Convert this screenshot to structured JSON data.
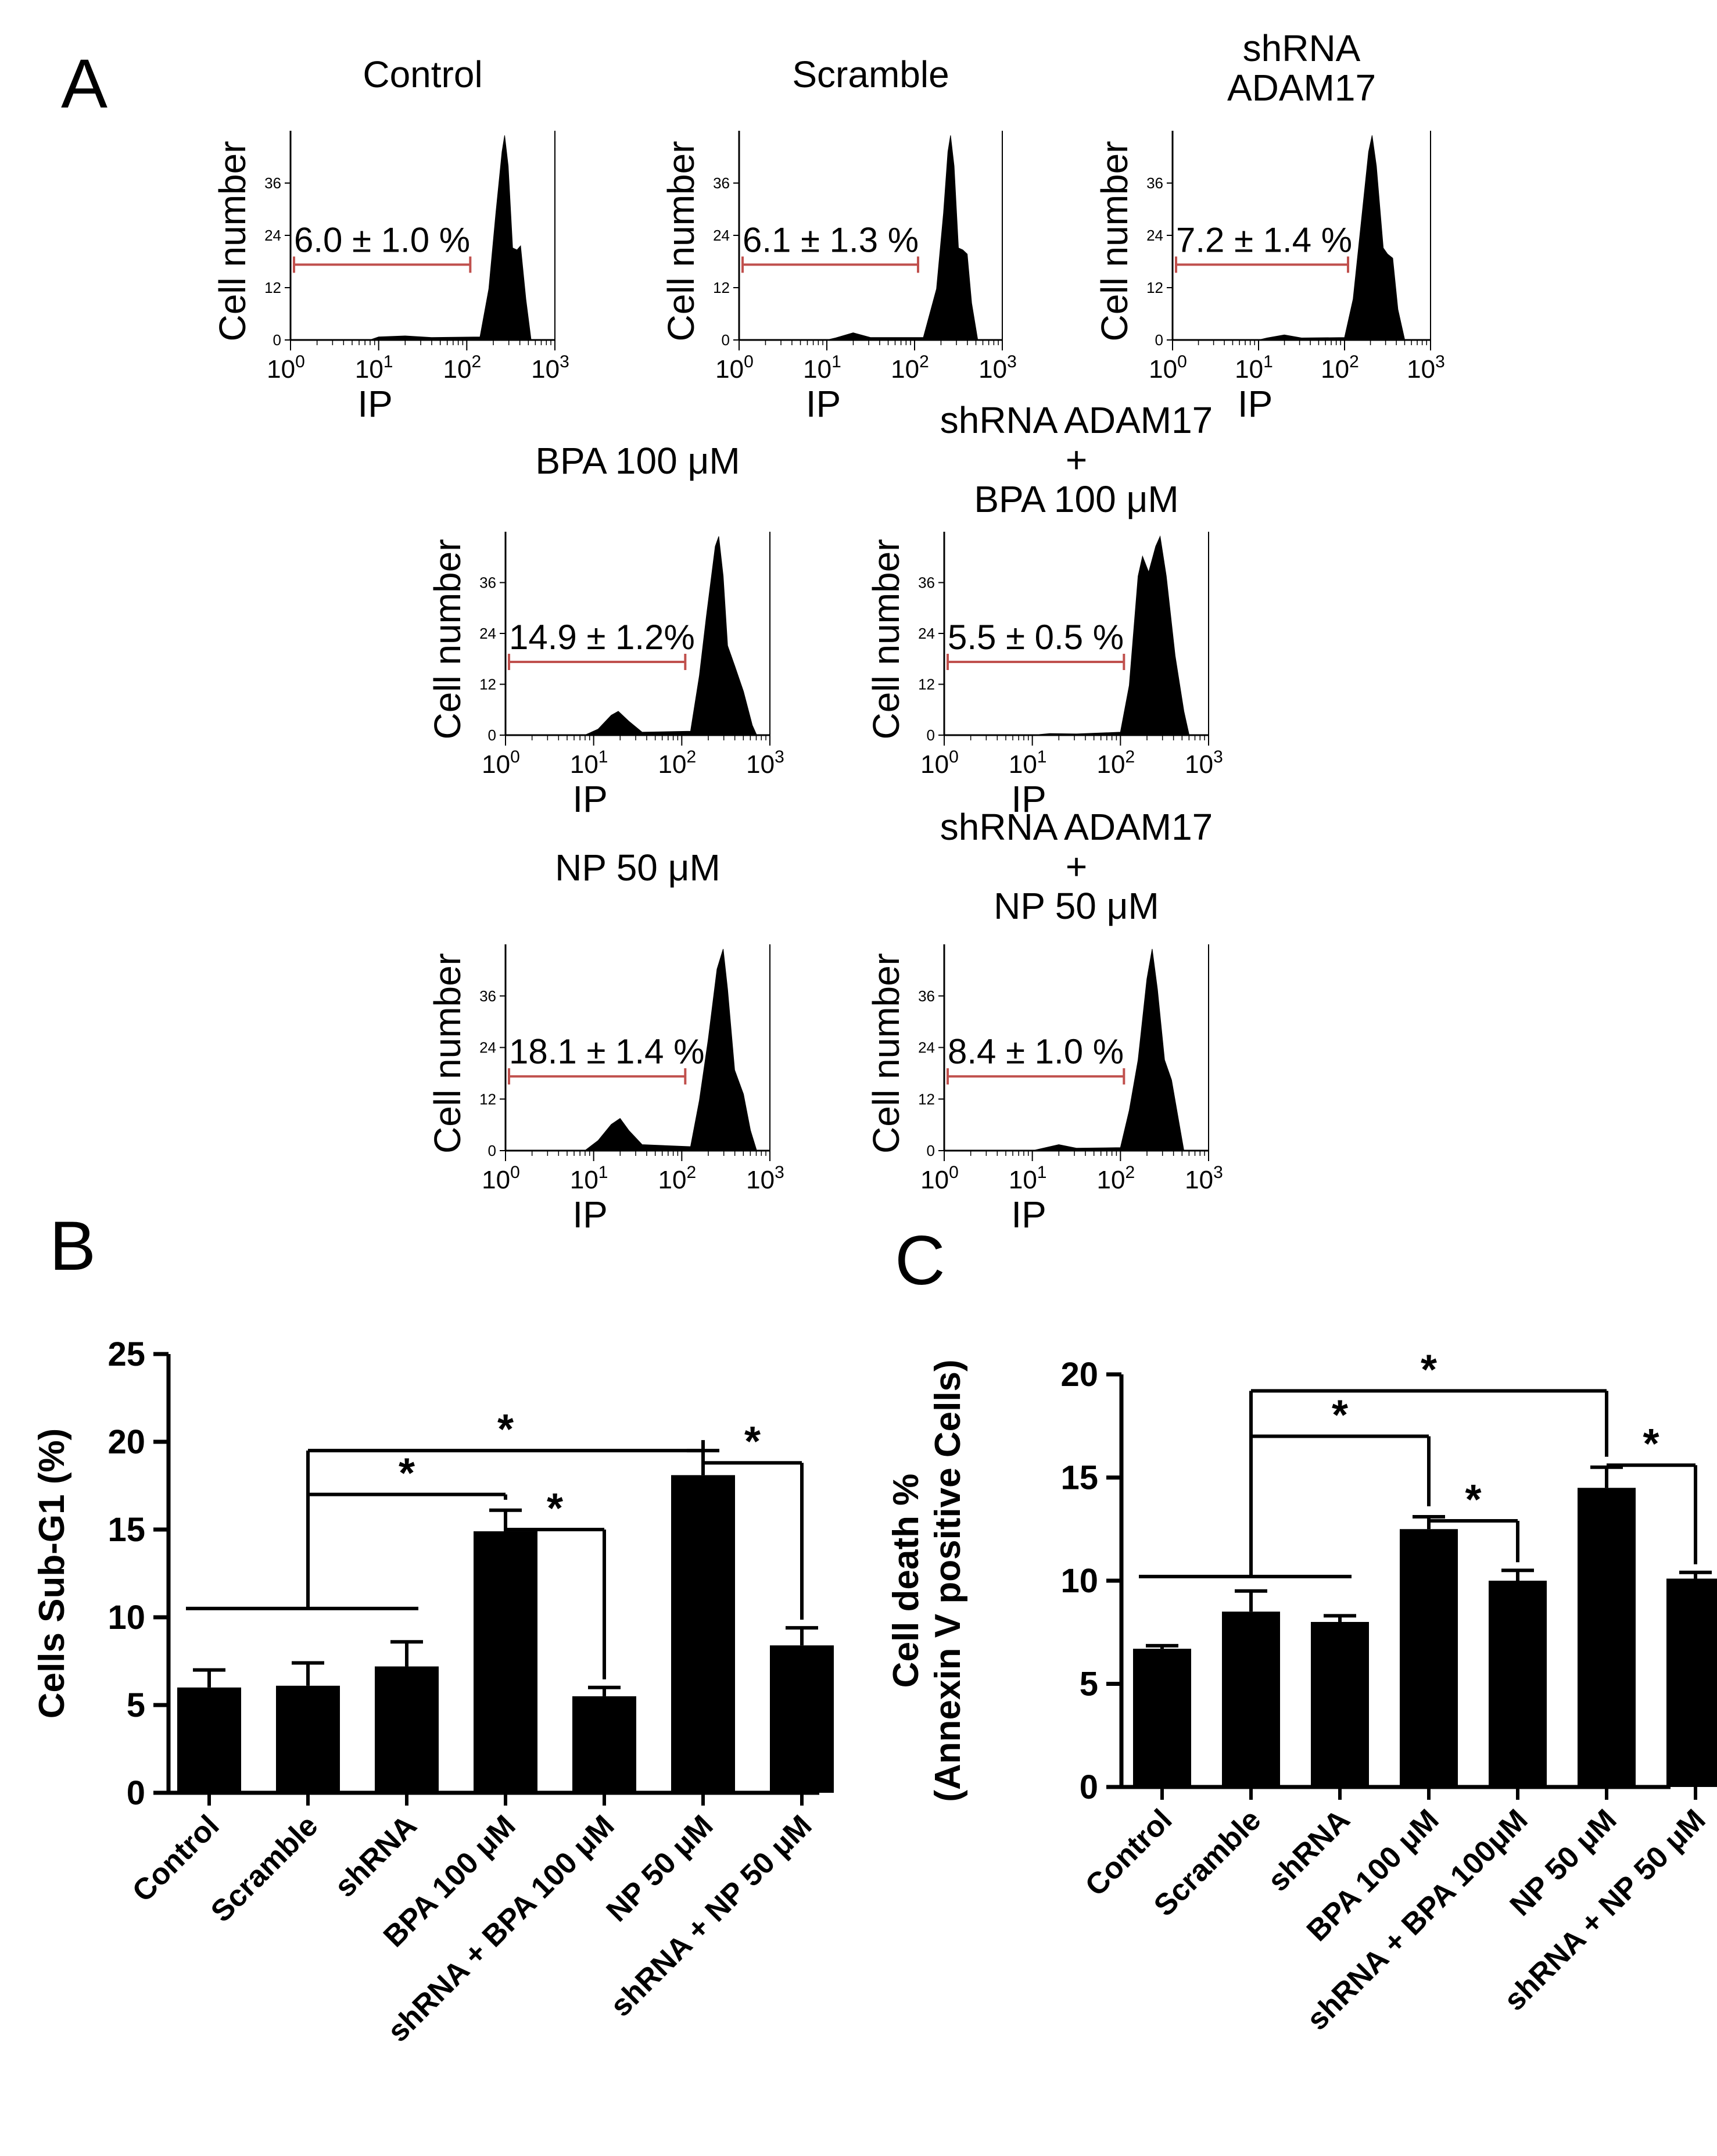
{
  "panel_labels": {
    "a": "A",
    "b": "B",
    "c": "C"
  },
  "colors": {
    "fill": "#000000",
    "gate": "#c0504d",
    "axis": "#000000",
    "background": "#ffffff"
  },
  "histograms": {
    "y_ticks": [
      "0",
      "12",
      "24",
      "36"
    ],
    "x_tick_base": "10",
    "x_tick_exponents": [
      "0",
      "1",
      "2",
      "3"
    ],
    "x_label": "IP",
    "y_label": "Cell number",
    "panels": [
      {
        "id": "control",
        "title_lines": [
          "Control"
        ],
        "percent_label": "6.0 ± 1.0 %"
      },
      {
        "id": "scramble",
        "title_lines": [
          "Scramble"
        ],
        "percent_label": "6.1 ± 1.3 %"
      },
      {
        "id": "shrna",
        "title_lines": [
          "shRNA",
          "ADAM17"
        ],
        "percent_label": "7.2 ± 1.4 %"
      },
      {
        "id": "bpa",
        "title_lines": [
          "BPA 100 μM"
        ],
        "percent_label": "14.9 ± 1.2%"
      },
      {
        "id": "shrna-bpa",
        "title_lines": [
          "shRNA ADAM17",
          "+",
          "BPA 100 μM"
        ],
        "percent_label": "5.5 ± 0.5 %"
      },
      {
        "id": "np",
        "title_lines": [
          "NP 50 μM"
        ],
        "percent_label": "18.1 ± 1.4 %"
      },
      {
        "id": "shrna-np",
        "title_lines": [
          "shRNA ADAM17",
          "+",
          "NP 50 μM"
        ],
        "percent_label": "8.4 ± 1.0 %"
      }
    ]
  },
  "chart_data": [
    {
      "panel": "B",
      "type": "bar",
      "title": "",
      "xlabel": "",
      "ylabel": "Cells Sub-G1 (%)",
      "ylim": [
        0,
        25
      ],
      "yticks": [
        "0",
        "5",
        "10",
        "15",
        "20",
        "25"
      ],
      "categories": [
        "Control",
        "Scramble",
        "shRNA",
        "BPA 100 μM",
        "shRNA + BPA 100 μM",
        "NP 50 μM",
        "shRNA + NP 50 μM"
      ],
      "values": [
        6.0,
        6.1,
        7.2,
        14.9,
        5.5,
        18.1,
        8.4
      ],
      "errors": [
        1.0,
        1.3,
        1.4,
        1.2,
        0.5,
        1.4,
        1.0
      ],
      "significance": [
        {
          "label": "*",
          "groups": "Control–shRNA vs BPA 100 μM"
        },
        {
          "label": "*",
          "groups": "Control–shRNA vs NP 50 μM"
        },
        {
          "label": "*",
          "groups": "BPA 100 μM vs shRNA + BPA 100 μM"
        },
        {
          "label": "*",
          "groups": "NP 50 μM vs shRNA + NP 50 μM"
        }
      ]
    },
    {
      "panel": "C",
      "type": "bar",
      "title": "",
      "xlabel": "",
      "ylabel_lines": [
        "Cell death %",
        "(Annexin V positive Cells)"
      ],
      "ylim": [
        0,
        20
      ],
      "yticks": [
        "0",
        "5",
        "10",
        "15",
        "20"
      ],
      "categories": [
        "Control",
        "Scramble",
        "shRNA",
        "BPA 100 μM",
        "shRNA + BPA 100μM",
        "NP 50 μM",
        "shRNA + NP 50 μM"
      ],
      "values": [
        6.7,
        8.5,
        8.0,
        12.5,
        10.0,
        14.5,
        10.1
      ],
      "errors": [
        0.15,
        1.0,
        0.3,
        0.6,
        0.5,
        1.0,
        0.3
      ],
      "significance": [
        {
          "label": "*",
          "groups": "Control–shRNA vs BPA 100 μM"
        },
        {
          "label": "*",
          "groups": "Control–shRNA vs NP 50 μM"
        },
        {
          "label": "*",
          "groups": "BPA 100 μM vs shRNA + BPA 100μM"
        },
        {
          "label": "*",
          "groups": "NP 50 μM vs shRNA + NP 50 μM"
        }
      ]
    }
  ]
}
